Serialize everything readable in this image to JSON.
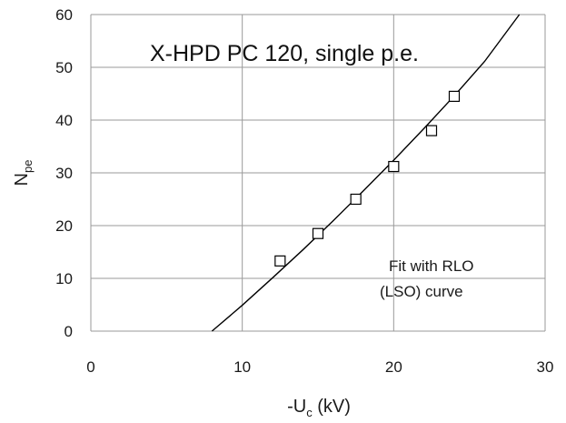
{
  "chart_data": {
    "type": "scatter",
    "title": "X-HPD PC 120, single p.e.",
    "xlabel": {
      "main": "-U",
      "sub": "c",
      "suffix": " (kV)"
    },
    "ylabel": {
      "main": "N",
      "sub": "pe"
    },
    "xlim": [
      0,
      30
    ],
    "ylim": [
      0,
      60
    ],
    "xticks": [
      0,
      10,
      20,
      30
    ],
    "yticks": [
      0,
      10,
      20,
      30,
      40,
      50,
      60
    ],
    "grid": true,
    "series": [
      {
        "marker": "open-square",
        "x": [
          12.5,
          15,
          17.5,
          20,
          22.5,
          24
        ],
        "y": [
          13.3,
          18.5,
          25,
          31.2,
          38,
          44.5
        ]
      },
      {
        "style": "line",
        "x": [
          8,
          10,
          12,
          14,
          16,
          18,
          20,
          22,
          24,
          26,
          28.3
        ],
        "y": [
          0,
          4.9,
          10.1,
          15.4,
          20.9,
          26.6,
          32.4,
          38.4,
          44.6,
          51.1,
          60
        ]
      }
    ],
    "annotations": [
      {
        "text_lines": [
          "Fit with RLO",
          "(LSO) curve"
        ]
      }
    ],
    "colors": {
      "line": "#000000",
      "grid": "#9a9a9a",
      "marker": "#000000"
    }
  }
}
